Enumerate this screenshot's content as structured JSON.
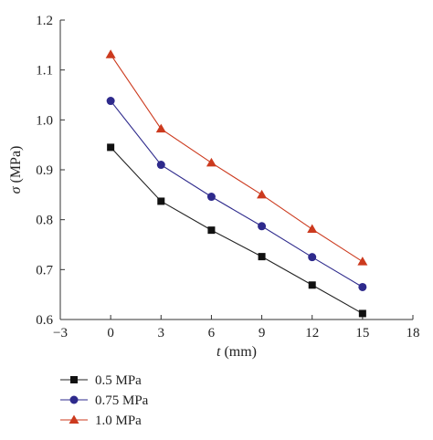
{
  "chart_data": {
    "type": "line",
    "xlabel_var": "t",
    "xlabel_unit": "(mm)",
    "ylabel_var": "σ",
    "ylabel_unit": "(MPa)",
    "xlim": [
      -3,
      18
    ],
    "ylim": [
      0.6,
      1.2
    ],
    "xticks": [
      -3,
      0,
      3,
      6,
      9,
      12,
      15,
      18
    ],
    "xtick_labels": [
      "−3",
      "0",
      "3",
      "6",
      "9",
      "12",
      "15",
      "18"
    ],
    "yticks": [
      0.6,
      0.7,
      0.8,
      0.9,
      1.0,
      1.1,
      1.2
    ],
    "ytick_labels": [
      "0.6",
      "0.7",
      "0.8",
      "0.9",
      "1.0",
      "1.1",
      "1.2"
    ],
    "x": [
      0,
      3,
      6,
      9,
      12,
      15
    ],
    "grid": false,
    "legend_position": "bottom-left",
    "series": [
      {
        "name": "0.5 MPa",
        "marker": "square",
        "color": "#222222",
        "markerColor": "#111111",
        "values": [
          0.945,
          0.837,
          0.779,
          0.726,
          0.669,
          0.612
        ]
      },
      {
        "name": "0.75 MPa",
        "marker": "circle",
        "color": "#2e2a8c",
        "markerColor": "#2e2a8c",
        "values": [
          1.038,
          0.91,
          0.846,
          0.787,
          0.725,
          0.665
        ]
      },
      {
        "name": "1.0 MPa",
        "marker": "triangle",
        "color": "#cc3a1e",
        "markerColor": "#cc3a1e",
        "values": [
          1.131,
          0.982,
          0.914,
          0.85,
          0.781,
          0.716
        ]
      }
    ]
  }
}
